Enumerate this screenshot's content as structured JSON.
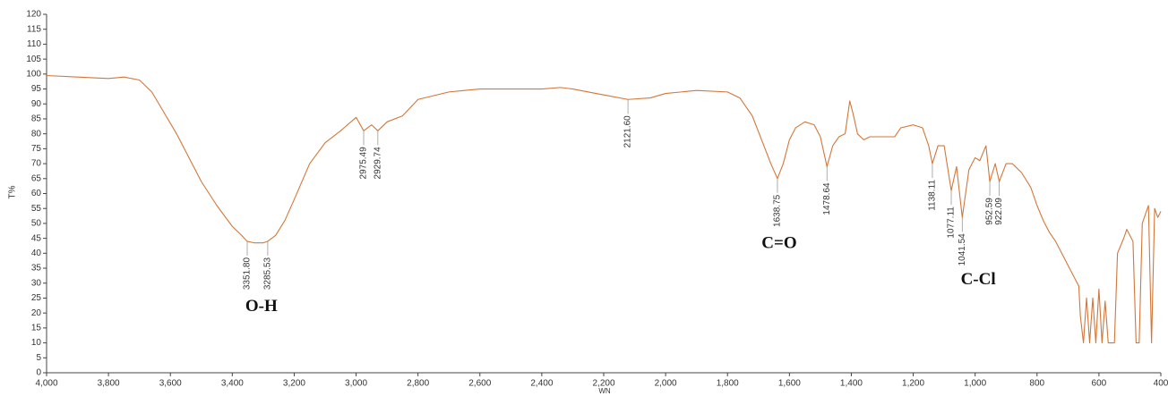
{
  "chart_data": {
    "type": "line",
    "y_label": "T%",
    "x_label": "WN",
    "color": "#d2773a",
    "xlim": [
      4000,
      400
    ],
    "ylim": [
      0,
      120
    ],
    "xticks": [
      {
        "value": 4000,
        "label": "4,000"
      },
      {
        "value": 3800,
        "label": "3,800"
      },
      {
        "value": 3600,
        "label": "3,600"
      },
      {
        "value": 3400,
        "label": "3,400"
      },
      {
        "value": 3200,
        "label": "3,200"
      },
      {
        "value": 3000,
        "label": "3,000"
      },
      {
        "value": 2800,
        "label": "2,800"
      },
      {
        "value": 2600,
        "label": "2,600"
      },
      {
        "value": 2400,
        "label": "2,400"
      },
      {
        "value": 2200,
        "label": "2,200"
      },
      {
        "value": 2000,
        "label": "2,000"
      },
      {
        "value": 1800,
        "label": "1,800"
      },
      {
        "value": 1600,
        "label": "1,600"
      },
      {
        "value": 1400,
        "label": "1,400"
      },
      {
        "value": 1200,
        "label": "1,200"
      },
      {
        "value": 1000,
        "label": "1,000"
      },
      800,
      600,
      400
    ],
    "yticks": [
      0,
      5,
      10,
      15,
      20,
      25,
      30,
      35,
      40,
      45,
      50,
      55,
      60,
      65,
      70,
      75,
      80,
      85,
      90,
      95,
      100,
      105,
      110,
      115,
      120
    ],
    "x": [
      4000,
      3900,
      3800,
      3750,
      3700,
      3660,
      3620,
      3580,
      3540,
      3500,
      3450,
      3400,
      3370,
      3351.8,
      3330,
      3300,
      3285.53,
      3260,
      3230,
      3200,
      3150,
      3100,
      3050,
      3000,
      2975.49,
      2950,
      2929.74,
      2900,
      2850,
      2800,
      2700,
      2600,
      2500,
      2400,
      2340,
      2300,
      2200,
      2121.6,
      2050,
      2000,
      1900,
      1800,
      1760,
      1720,
      1690,
      1660,
      1638.75,
      1620,
      1600,
      1580,
      1550,
      1520,
      1500,
      1478.64,
      1460,
      1440,
      1420,
      1405,
      1395,
      1380,
      1360,
      1340,
      1300,
      1260,
      1240,
      1200,
      1170,
      1150,
      1138.11,
      1120,
      1100,
      1077.11,
      1060,
      1041.54,
      1020,
      1000,
      985,
      965,
      952.59,
      935,
      922.09,
      900,
      880,
      850,
      820,
      800,
      780,
      760,
      740,
      720,
      700,
      680,
      665,
      660,
      650,
      640,
      630,
      620,
      610,
      600,
      590,
      580,
      570,
      550,
      540,
      520,
      510,
      490,
      480,
      470,
      460,
      440,
      430,
      420,
      410,
      400
    ],
    "values": [
      99.5,
      99,
      98.5,
      99,
      98,
      94,
      87,
      80,
      72,
      64,
      56,
      49,
      46,
      44,
      43.5,
      43.5,
      44,
      46,
      51,
      58,
      70,
      77,
      81,
      85.5,
      81,
      83,
      81,
      84,
      86,
      91.5,
      94,
      95,
      95,
      95,
      95.5,
      95,
      93,
      91.5,
      92,
      93.5,
      94.5,
      94,
      92,
      86,
      78,
      70,
      65,
      70,
      78,
      82,
      84,
      83,
      79,
      69,
      76,
      79,
      80,
      91,
      87,
      80,
      78,
      79,
      79,
      79,
      82,
      83,
      82,
      76,
      70,
      76,
      76,
      61,
      69,
      52,
      68,
      72,
      71,
      76,
      64,
      70,
      64,
      70,
      70,
      67,
      62,
      56,
      51,
      47,
      44,
      40,
      36,
      32,
      29,
      19,
      10,
      25,
      10,
      25,
      10,
      28,
      10,
      24,
      10,
      10,
      40,
      45,
      48,
      44,
      10,
      10,
      50,
      56,
      10,
      55,
      52,
      54
    ],
    "annotations": [
      {
        "label": "3351.80",
        "x": 3351.8,
        "y": 44
      },
      {
        "label": "3285.53",
        "x": 3285.53,
        "y": 44
      },
      {
        "label": "2975.49",
        "x": 2975.49,
        "y": 81
      },
      {
        "label": "2929.74",
        "x": 2929.74,
        "y": 81
      },
      {
        "label": "2121.60",
        "x": 2121.6,
        "y": 91.5
      },
      {
        "label": "1638.75",
        "x": 1638.75,
        "y": 65
      },
      {
        "label": "1478.64",
        "x": 1478.64,
        "y": 69
      },
      {
        "label": "1138.11",
        "x": 1138.11,
        "y": 70
      },
      {
        "label": "1077.11",
        "x": 1077.11,
        "y": 61
      },
      {
        "label": "1041.54",
        "x": 1041.54,
        "y": 52
      },
      {
        "label": "952.59",
        "x": 952.59,
        "y": 64
      },
      {
        "label": "922.09",
        "x": 922.09,
        "y": 64
      }
    ],
    "group_labels": [
      {
        "text": "O-H",
        "x": 3306,
        "y": 22
      },
      {
        "text": "C=O",
        "x": 1633,
        "y": 43
      },
      {
        "text": "C-Cl",
        "x": 990,
        "y": 31
      }
    ]
  }
}
